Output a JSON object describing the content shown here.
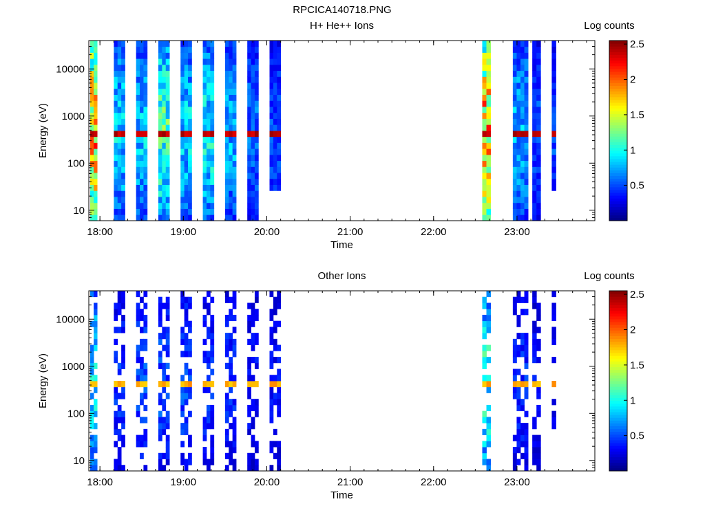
{
  "figure": {
    "title": "RPCICA140718.PNG"
  },
  "chart_data": [
    {
      "type": "heatmap",
      "title": "H+ He++ Ions",
      "xlabel": "Time",
      "ylabel": "Energy (eV)",
      "x_range": [
        "17:52",
        "23:56"
      ],
      "x_ticks": [
        "18:00",
        "19:00",
        "20:00",
        "21:00",
        "22:00",
        "23:00"
      ],
      "y_scale": "log",
      "y_range": [
        6,
        40000
      ],
      "y_ticks": [
        "10",
        "100",
        "1000",
        "10000"
      ],
      "colorbar": {
        "label": "Log counts",
        "range": [
          0,
          2.55
        ],
        "ticks": [
          "0.5",
          "1",
          "1.5",
          "2",
          "2.5"
        ],
        "colormap": "jet"
      },
      "segments": [
        {
          "start": "17:53",
          "end": "17:58",
          "peak_log_counts": 2.1,
          "ymin_eV": 6
        },
        {
          "start": "18:10",
          "end": "18:18",
          "peak_log_counts": 1.0,
          "ymin_eV": 6
        },
        {
          "start": "18:26",
          "end": "18:34",
          "peak_log_counts": 1.0,
          "ymin_eV": 6
        },
        {
          "start": "18:42",
          "end": "18:50",
          "peak_log_counts": 1.3,
          "ymin_eV": 6
        },
        {
          "start": "18:58",
          "end": "19:06",
          "peak_log_counts": 1.0,
          "ymin_eV": 6
        },
        {
          "start": "19:14",
          "end": "19:22",
          "peak_log_counts": 1.1,
          "ymin_eV": 6
        },
        {
          "start": "19:30",
          "end": "19:38",
          "peak_log_counts": 0.9,
          "ymin_eV": 6
        },
        {
          "start": "19:46",
          "end": "19:54",
          "peak_log_counts": 0.7,
          "ymin_eV": 6
        },
        {
          "start": "20:02",
          "end": "20:10",
          "peak_log_counts": 0.6,
          "ymin_eV": 28
        },
        {
          "start": "22:35",
          "end": "22:41",
          "peak_log_counts": 2.1,
          "ymin_eV": 6
        },
        {
          "start": "22:57",
          "end": "23:08",
          "peak_log_counts": 0.9,
          "ymin_eV": 6
        },
        {
          "start": "23:11",
          "end": "23:17",
          "peak_log_counts": 0.6,
          "ymin_eV": 6
        },
        {
          "start": "23:25",
          "end": "23:28",
          "peak_log_counts": 0.6,
          "ymin_eV": 28
        }
      ],
      "line_feature": {
        "energy_eV": 480,
        "log_counts": 2.5
      }
    },
    {
      "type": "heatmap",
      "title": "Other Ions",
      "xlabel": "Time",
      "ylabel": "Energy (eV)",
      "x_range": [
        "17:52",
        "23:56"
      ],
      "x_ticks": [
        "18:00",
        "19:00",
        "20:00",
        "21:00",
        "22:00",
        "23:00"
      ],
      "y_scale": "log",
      "y_range": [
        6,
        40000
      ],
      "y_ticks": [
        "10",
        "100",
        "1000",
        "10000"
      ],
      "colorbar": {
        "label": "Log counts",
        "range": [
          0,
          2.55
        ],
        "ticks": [
          "0.5",
          "1",
          "1.5",
          "2",
          "2.5"
        ],
        "colormap": "jet"
      },
      "segments": [
        {
          "start": "17:53",
          "end": "17:58",
          "peak_log_counts": 1.1,
          "ymin_eV": 6
        },
        {
          "start": "18:10",
          "end": "18:18",
          "peak_log_counts": 0.5,
          "ymin_eV": 6
        },
        {
          "start": "18:26",
          "end": "18:34",
          "peak_log_counts": 0.6,
          "ymin_eV": 6
        },
        {
          "start": "18:42",
          "end": "18:50",
          "peak_log_counts": 0.6,
          "ymin_eV": 6
        },
        {
          "start": "18:58",
          "end": "19:06",
          "peak_log_counts": 0.6,
          "ymin_eV": 6
        },
        {
          "start": "19:14",
          "end": "19:22",
          "peak_log_counts": 0.5,
          "ymin_eV": 6
        },
        {
          "start": "19:30",
          "end": "19:38",
          "peak_log_counts": 0.5,
          "ymin_eV": 6
        },
        {
          "start": "19:46",
          "end": "19:54",
          "peak_log_counts": 0.4,
          "ymin_eV": 6
        },
        {
          "start": "20:02",
          "end": "20:10",
          "peak_log_counts": 0.4,
          "ymin_eV": 6
        },
        {
          "start": "22:35",
          "end": "22:41",
          "peak_log_counts": 1.2,
          "ymin_eV": 6
        },
        {
          "start": "22:57",
          "end": "23:08",
          "peak_log_counts": 0.5,
          "ymin_eV": 6
        },
        {
          "start": "23:11",
          "end": "23:17",
          "peak_log_counts": 0.4,
          "ymin_eV": 6
        },
        {
          "start": "23:25",
          "end": "23:28",
          "peak_log_counts": 0.4,
          "ymin_eV": 28
        }
      ],
      "line_feature": {
        "energy_eV": 480,
        "log_counts": 1.9
      }
    }
  ]
}
